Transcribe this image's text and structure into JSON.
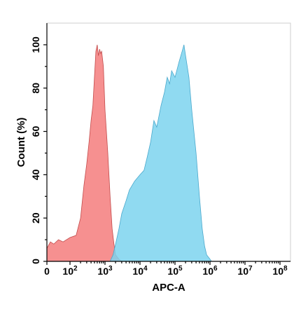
{
  "chart_data": {
    "type": "area",
    "xlabel": "APC-A",
    "ylabel": "Count (%)",
    "xscale": "biexponential",
    "xlim": [
      -30,
      100000000
    ],
    "ylim": [
      0,
      110
    ],
    "x_ticks": [
      {
        "value": 0,
        "label": "0"
      },
      {
        "value": 100,
        "base": "10",
        "exp": "2"
      },
      {
        "value": 1000,
        "base": "10",
        "exp": "3"
      },
      {
        "value": 10000,
        "base": "10",
        "exp": "4"
      },
      {
        "value": 100000,
        "base": "10",
        "exp": "5"
      },
      {
        "value": 1000000,
        "base": "10",
        "exp": "6"
      },
      {
        "value": 10000000,
        "base": "10",
        "exp": "7"
      },
      {
        "value": 100000000,
        "base": "10",
        "exp": "8"
      }
    ],
    "y_ticks": [
      0,
      20,
      40,
      60,
      80,
      100
    ],
    "series": [
      {
        "color": "#f47d7d",
        "stroke": "#c24b4b",
        "points": [
          [
            -30,
            10
          ],
          [
            -15,
            7
          ],
          [
            0,
            6
          ],
          [
            15,
            9
          ],
          [
            30,
            8
          ],
          [
            50,
            10
          ],
          [
            70,
            9
          ],
          [
            100,
            11
          ],
          [
            150,
            12
          ],
          [
            200,
            20
          ],
          [
            250,
            35
          ],
          [
            300,
            45
          ],
          [
            350,
            55
          ],
          [
            400,
            65
          ],
          [
            450,
            72
          ],
          [
            500,
            85
          ],
          [
            550,
            97
          ],
          [
            600,
            100
          ],
          [
            650,
            95
          ],
          [
            700,
            98
          ],
          [
            750,
            96
          ],
          [
            800,
            97
          ],
          [
            900,
            90
          ],
          [
            1000,
            70
          ],
          [
            1200,
            50
          ],
          [
            1400,
            30
          ],
          [
            1600,
            15
          ],
          [
            1800,
            8
          ],
          [
            2000,
            3
          ],
          [
            2500,
            1
          ],
          [
            3000,
            0
          ]
        ]
      },
      {
        "color": "#7dd3ee",
        "stroke": "#4aa8cc",
        "points": [
          [
            1400,
            0
          ],
          [
            1700,
            3
          ],
          [
            2000,
            8
          ],
          [
            2500,
            15
          ],
          [
            3000,
            22
          ],
          [
            4000,
            28
          ],
          [
            5000,
            33
          ],
          [
            7000,
            37
          ],
          [
            10000,
            40
          ],
          [
            13000,
            42
          ],
          [
            16000,
            48
          ],
          [
            20000,
            55
          ],
          [
            25000,
            65
          ],
          [
            30000,
            62
          ],
          [
            40000,
            72
          ],
          [
            50000,
            78
          ],
          [
            60000,
            85
          ],
          [
            70000,
            82
          ],
          [
            80000,
            88
          ],
          [
            100000,
            85
          ],
          [
            130000,
            92
          ],
          [
            160000,
            97
          ],
          [
            180000,
            100
          ],
          [
            200000,
            95
          ],
          [
            250000,
            85
          ],
          [
            300000,
            70
          ],
          [
            400000,
            50
          ],
          [
            500000,
            30
          ],
          [
            600000,
            15
          ],
          [
            700000,
            7
          ],
          [
            800000,
            3
          ],
          [
            1000000,
            1
          ],
          [
            1100000,
            0
          ]
        ]
      }
    ]
  }
}
